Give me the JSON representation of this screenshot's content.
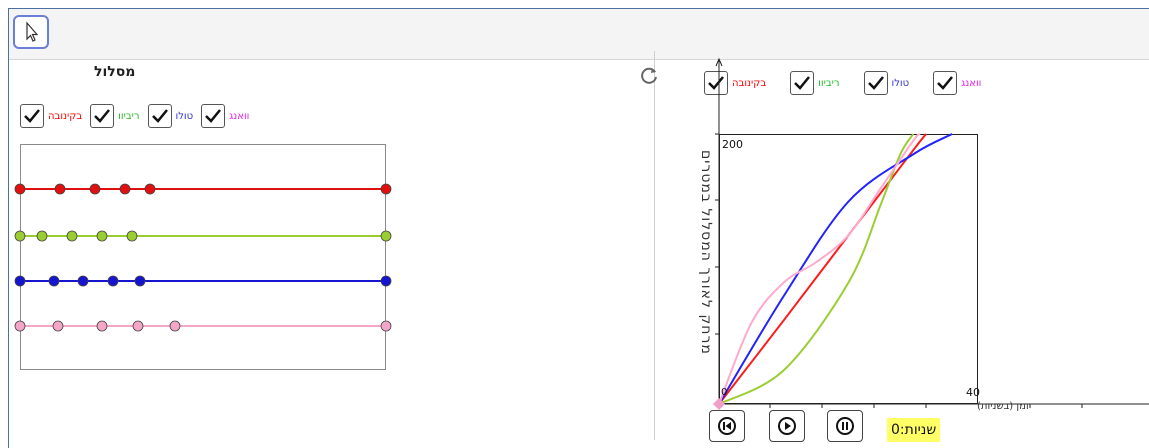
{
  "toolbar": {
    "pointer_tool": "pointer-icon"
  },
  "left_panel": {
    "title": "מסלול",
    "runners": [
      {
        "label": "בקינובה",
        "color": "#ff0000",
        "checked": true
      },
      {
        "label": "ריביוו",
        "color": "#22bb22",
        "checked": true
      },
      {
        "label": "טולו",
        "color": "#3333cc",
        "checked": true
      },
      {
        "label": "וואנג",
        "color": "#ee22ee",
        "checked": true
      }
    ],
    "tracks": [
      {
        "name": "red-track",
        "color": "#e01010",
        "dots": [
          0,
          40,
          75,
          105,
          130,
          366
        ]
      },
      {
        "name": "green-track",
        "color": "#9acd32",
        "dots": [
          0,
          22,
          52,
          82,
          112,
          366
        ]
      },
      {
        "name": "blue-track",
        "color": "#1515d0",
        "dots": [
          0,
          34,
          63,
          93,
          120,
          366
        ]
      },
      {
        "name": "pink-track",
        "color": "#f4a6c8",
        "dots": [
          0,
          38,
          82,
          118,
          155,
          366
        ]
      }
    ]
  },
  "right_panel": {
    "runners": [
      {
        "label": "בקינובה",
        "color": "#ff0000",
        "checked": true
      },
      {
        "label": "ריביוו",
        "color": "#22bb22",
        "checked": true
      },
      {
        "label": "טולו",
        "color": "#3333cc",
        "checked": true
      },
      {
        "label": "וואנג",
        "color": "#ee22ee",
        "checked": true
      }
    ],
    "chart": {
      "ylabel": "מרחק לאורך המסלול במטרים",
      "xlabel": "זמן (בשניות)",
      "y_max_label": "200",
      "x_max_label": "40",
      "zero_label": "0"
    },
    "timer_text": "שניות:0"
  },
  "chart_data": {
    "type": "line",
    "xlabel": "זמן (בשניות)",
    "ylabel": "מרחק לאורך המסלול במטרים",
    "xlim": [
      0,
      40
    ],
    "ylim": [
      0,
      200
    ],
    "series": [
      {
        "name": "בקינובה",
        "color": "#ff1a1a",
        "x": [
          0,
          10,
          20,
          30,
          32
        ],
        "y": [
          0,
          62,
          125,
          188,
          200
        ]
      },
      {
        "name": "ריביוו",
        "color": "#9acd32",
        "x": [
          0,
          10,
          20,
          25,
          28,
          30
        ],
        "y": [
          0,
          25,
          90,
          148,
          185,
          200
        ]
      },
      {
        "name": "טולו",
        "color": "#2222ff",
        "x": [
          0,
          10,
          20,
          30,
          36
        ],
        "y": [
          0,
          80,
          150,
          185,
          200
        ]
      },
      {
        "name": "וואנג",
        "color": "#ffaacc",
        "x": [
          0,
          5,
          10,
          15,
          20,
          25,
          30,
          31
        ],
        "y": [
          0,
          60,
          90,
          105,
          125,
          160,
          195,
          200
        ]
      }
    ]
  }
}
